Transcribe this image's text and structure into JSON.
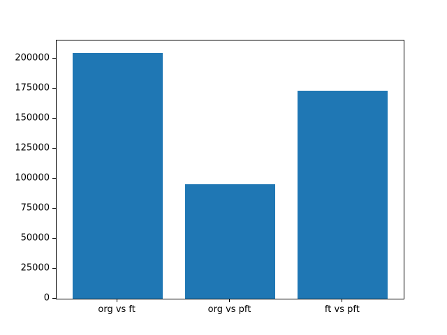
{
  "chart_data": {
    "type": "bar",
    "title": "",
    "xlabel": "",
    "ylabel": "",
    "categories": [
      "org vs ft",
      "org vs pft",
      "ft vs pft"
    ],
    "values": [
      205000,
      95400,
      173200
    ],
    "yticks": [
      0,
      25000,
      50000,
      75000,
      100000,
      125000,
      150000,
      175000,
      200000
    ],
    "ytick_labels": [
      "0",
      "25000",
      "50000",
      "75000",
      "100000",
      "125000",
      "150000",
      "175000",
      "200000"
    ],
    "ylim": [
      0,
      215250
    ],
    "bar_color": "#1f77b4",
    "spine_color": "#000000",
    "background_color": "#ffffff",
    "grid": "off",
    "legend": "none"
  }
}
